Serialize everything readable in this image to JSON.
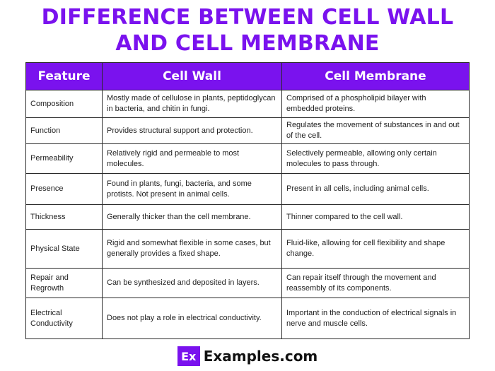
{
  "title": {
    "line1": "DIFFERENCE BETWEEN CELL WALL",
    "line2": "AND CELL MEMBRANE"
  },
  "table": {
    "headers": [
      "Feature",
      "Cell Wall",
      "Cell Membrane"
    ],
    "rows": [
      [
        "Composition",
        "Mostly made of cellulose in plants, peptidoglycan in bacteria, and chitin in fungi.",
        "Comprised of a phospholipid bilayer with embedded proteins."
      ],
      [
        "Function",
        "Provides structural support and protection.",
        "Regulates the movement of substances in and out of the cell."
      ],
      [
        "Permeability",
        "Relatively rigid and permeable to most molecules.",
        "Selectively permeable, allowing only certain molecules to pass through."
      ],
      [
        "Presence",
        "Found in plants, fungi, bacteria, and some protists. Not present in animal cells.",
        "Present in all cells, including animal cells."
      ],
      [
        "Thickness",
        "Generally thicker than the cell membrane.",
        "Thinner compared to the cell wall."
      ],
      [
        "Physical State",
        "Rigid and somewhat flexible in some cases, but generally provides a fixed shape.",
        "Fluid-like, allowing for cell flexibility and shape change."
      ],
      [
        "Repair and Regrowth",
        "Can be synthesized and deposited in layers.",
        "Can repair itself through the movement and reassembly of its components."
      ],
      [
        "Electrical Conductivity",
        "Does not play a role in electrical conductivity.",
        "Important in the conduction of electrical signals in nerve and muscle cells."
      ]
    ]
  },
  "footer": {
    "logo_mark": "Ex",
    "logo_text": "Examples.com"
  },
  "colors": {
    "accent": "#7a12ee",
    "border": "#2a2a2a"
  }
}
